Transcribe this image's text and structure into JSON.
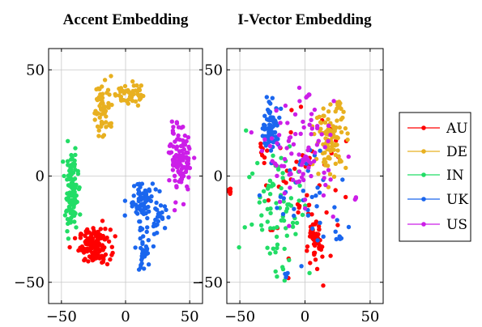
{
  "colors": {
    "AU": "#ff0000",
    "DE": "#e8b020",
    "IN": "#22dd66",
    "UK": "#1a66ee",
    "US": "#cc1ee8",
    "grid": "#c8c8c8"
  },
  "chart_data": [
    {
      "type": "scatter",
      "title": "Accent Embedding",
      "xlim": [
        -60,
        60
      ],
      "ylim": [
        -60,
        60
      ],
      "xticks": [
        -50,
        0,
        50
      ],
      "yticks": [
        -50,
        0,
        50
      ],
      "xtick_labels": [
        "−50",
        "0",
        "50"
      ],
      "ytick_labels": [
        "−50",
        "0",
        "50"
      ],
      "grid": true,
      "series": [
        {
          "name": "AU",
          "clusters": [
            {
              "cx": -24,
              "cy": -33,
              "sx": 6,
              "sy": 4,
              "n": 140
            }
          ]
        },
        {
          "name": "DE",
          "clusters": [
            {
              "cx": -17,
              "cy": 33,
              "sx": 4,
              "sy": 7,
              "n": 60
            },
            {
              "cx": 2,
              "cy": 39,
              "sx": 5,
              "sy": 3,
              "n": 45
            }
          ]
        },
        {
          "name": "IN",
          "clusters": [
            {
              "cx": -42,
              "cy": -8,
              "sx": 2.5,
              "sy": 9,
              "n": 120
            }
          ]
        },
        {
          "name": "UK",
          "clusters": [
            {
              "cx": 12,
              "cy": -12,
              "sx": 5,
              "sy": 5,
              "n": 70
            },
            {
              "cx": 14,
              "cy": -35,
              "sx": 3,
              "sy": 6,
              "n": 40
            },
            {
              "cx": 26,
              "cy": -20,
              "sx": 3,
              "sy": 3,
              "n": 25
            }
          ]
        },
        {
          "name": "US",
          "clusters": [
            {
              "cx": 43,
              "cy": 8,
              "sx": 4,
              "sy": 8,
              "n": 110
            }
          ]
        }
      ]
    },
    {
      "type": "scatter",
      "title": "I-Vector Embedding",
      "xlim": [
        -60,
        60
      ],
      "ylim": [
        -60,
        60
      ],
      "xticks": [
        -50,
        0,
        50
      ],
      "yticks": [
        -50,
        0,
        50
      ],
      "xtick_labels": [
        "−50",
        "0",
        "50"
      ],
      "ytick_labels": [
        "−50",
        "0",
        "50"
      ],
      "grid": true,
      "legend": "right",
      "series": [
        {
          "name": "AU",
          "clusters": [
            {
              "cx": 7,
              "cy": -32,
              "sx": 3,
              "sy": 5,
              "n": 50
            },
            {
              "cx": -58,
              "cy": -7,
              "sx": 1,
              "sy": 1,
              "n": 6
            },
            {
              "cx": -32,
              "cy": 10,
              "sx": 2,
              "sy": 2,
              "n": 8
            },
            {
              "cx": -5,
              "cy": -5,
              "sx": 18,
              "sy": 18,
              "n": 45
            }
          ]
        },
        {
          "name": "DE",
          "clusters": [
            {
              "cx": 20,
              "cy": 18,
              "sx": 6,
              "sy": 7,
              "n": 100
            },
            {
              "cx": 26,
              "cy": 33,
              "sx": 1.5,
              "sy": 1.5,
              "n": 8
            }
          ]
        },
        {
          "name": "IN",
          "clusters": [
            {
              "cx": -20,
              "cy": -15,
              "sx": 12,
              "sy": 17,
              "n": 80
            }
          ]
        },
        {
          "name": "UK",
          "clusters": [
            {
              "cx": -26,
              "cy": 23,
              "sx": 3,
              "sy": 5,
              "n": 90
            },
            {
              "cx": 3,
              "cy": -10,
              "sx": 14,
              "sy": 14,
              "n": 40
            },
            {
              "cx": -14,
              "cy": -47,
              "sx": 1,
              "sy": 1,
              "n": 5
            },
            {
              "cx": 27,
              "cy": -29,
              "sx": 1,
              "sy": 1,
              "n": 5
            }
          ]
        },
        {
          "name": "US",
          "clusters": [
            {
              "cx": -2,
              "cy": 10,
              "sx": 13,
              "sy": 12,
              "n": 90
            },
            {
              "cx": 2,
              "cy": 38,
              "sx": 1,
              "sy": 1,
              "n": 5
            },
            {
              "cx": 39,
              "cy": -10,
              "sx": 1,
              "sy": 1,
              "n": 3
            }
          ]
        }
      ]
    }
  ]
}
